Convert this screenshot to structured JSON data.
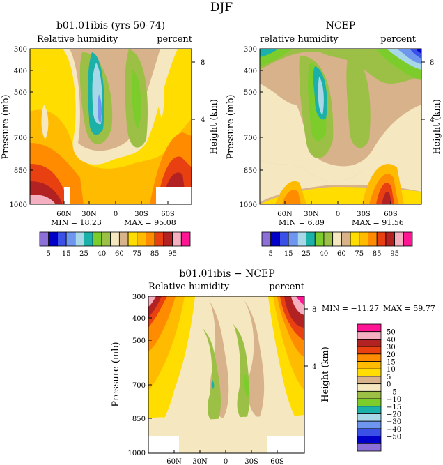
{
  "figure": {
    "title": "DJF",
    "panels": [
      {
        "id": "model",
        "title": "b01.01ibis (yrs 50-74)",
        "left_label": "Relative humidity",
        "right_label": "percent",
        "ylabel": "Pressure (mb)",
        "y2label": "Height (km)",
        "min_text": "MIN =   18.23",
        "max_text": "MAX =   95.08"
      },
      {
        "id": "ncep",
        "title": "NCEP",
        "left_label": "relative humidity",
        "right_label": "percent",
        "ylabel": "Pressure (mb)",
        "y2label": "Height (km)",
        "min_text": "MIN =    6.89",
        "max_text": "MAX =   91.56"
      },
      {
        "id": "diff",
        "title": "b01.01ibis − NCEP",
        "left_label": "Relative humidity",
        "right_label": "percent",
        "ylabel": "Pressure (mb)",
        "y2label": "Height (km)",
        "min_text": "MIN = −11.27",
        "max_text": "MAX =   59.77"
      }
    ],
    "pressure_ticks": [
      "300",
      "400",
      "500",
      "700",
      "850",
      "1000"
    ],
    "lat_ticks": [
      "60N",
      "30N",
      "0",
      "30S",
      "60S"
    ],
    "height_ticks": [
      "8",
      "4"
    ]
  },
  "colorbar_rh": {
    "labels": [
      "5",
      "15",
      "25",
      "40",
      "60",
      "75",
      "85",
      "95"
    ],
    "colors": [
      "#8c70d8",
      "#0000c8",
      "#3a50e6",
      "#6f96ef",
      "#a8d8e8",
      "#1bb0a8",
      "#7ccc2c",
      "#9cc046",
      "#f5e7c0",
      "#d8b28a",
      "#ffdd00",
      "#ffbb00",
      "#ff8c00",
      "#e84010",
      "#b22222",
      "#f4b0c0",
      "#ff1493"
    ]
  },
  "colorbar_diff": {
    "labels": [
      "50",
      "40",
      "30",
      "20",
      "15",
      "10",
      "5",
      "0",
      "−5",
      "−10",
      "−15",
      "−20",
      "−30",
      "−40",
      "−50"
    ],
    "colors": [
      "#ff1493",
      "#f4b0c0",
      "#b22222",
      "#e84010",
      "#ff8c00",
      "#ffbb00",
      "#ffdd00",
      "#d8b28a",
      "#f5e7c0",
      "#9cc046",
      "#7ccc2c",
      "#1bb0a8",
      "#a8d8e8",
      "#6f96ef",
      "#3a50e6",
      "#0000c8",
      "#8c70d8"
    ]
  },
  "chart_data": [
    {
      "type": "heatmap",
      "title": "b01.01ibis (yrs 50-74)",
      "xlabel": "",
      "ylabel": "Pressure (mb)",
      "x": [
        "60N",
        "30N",
        "0",
        "30S",
        "60S"
      ],
      "y": [
        300,
        400,
        500,
        700,
        850,
        1000
      ],
      "values": [
        [
          55,
          20,
          45,
          60,
          70
        ],
        [
          60,
          25,
          40,
          55,
          70
        ],
        [
          65,
          30,
          45,
          60,
          75
        ],
        [
          70,
          45,
          50,
          65,
          80
        ],
        [
          85,
          75,
          65,
          80,
          90
        ],
        [
          92,
          85,
          80,
          85,
          95
        ]
      ],
      "min": 18.23,
      "max": 95.08
    },
    {
      "type": "heatmap",
      "title": "NCEP",
      "xlabel": "",
      "ylabel": "Pressure (mb)",
      "x": [
        "60N",
        "30N",
        "0",
        "30S",
        "60S"
      ],
      "y": [
        300,
        400,
        500,
        700,
        850,
        1000
      ],
      "values": [
        [
          30,
          15,
          40,
          45,
          10
        ],
        [
          40,
          20,
          40,
          50,
          40
        ],
        [
          50,
          25,
          50,
          60,
          55
        ],
        [
          60,
          45,
          55,
          60,
          60
        ],
        [
          65,
          60,
          60,
          70,
          75
        ],
        [
          80,
          75,
          70,
          80,
          91
        ]
      ],
      "min": 6.89,
      "max": 91.56
    },
    {
      "type": "heatmap",
      "title": "b01.01ibis − NCEP",
      "xlabel": "",
      "ylabel": "Pressure (mb)",
      "x": [
        "60N",
        "30N",
        "0",
        "30S",
        "60S"
      ],
      "y": [
        300,
        400,
        500,
        700,
        850,
        1000
      ],
      "values": [
        [
          40,
          10,
          5,
          15,
          45
        ],
        [
          30,
          5,
          0,
          5,
          40
        ],
        [
          15,
          5,
          -5,
          5,
          20
        ],
        [
          10,
          0,
          -5,
          5,
          15
        ],
        [
          15,
          10,
          5,
          10,
          10
        ],
        [
          10,
          5,
          5,
          5,
          5
        ]
      ],
      "min": -11.27,
      "max": 59.77
    }
  ]
}
